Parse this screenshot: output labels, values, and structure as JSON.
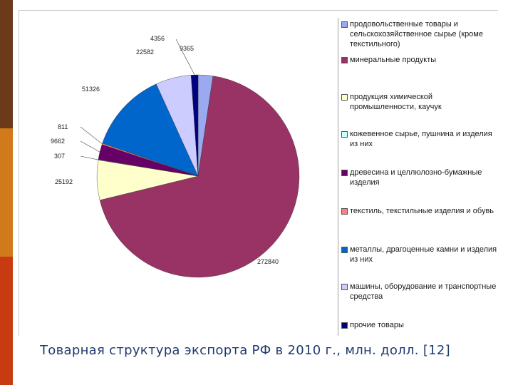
{
  "caption": "Товарная структура экспорта РФ в 2010 г., млн. долл. [12]",
  "colors": {
    "slide_bar": [
      "#6b3a1a",
      "#d07a1c",
      "#c83a10"
    ]
  },
  "chart_data": {
    "type": "pie",
    "title": "",
    "legend_position": "right",
    "slices": [
      {
        "name": "продовольственные товары и сельскохозяйственное сырье (кроме текстильного)",
        "value": 9365,
        "label": "9365",
        "color": "#9aa9f0"
      },
      {
        "name": "минеральные продукты",
        "value": 272840,
        "label": "272840",
        "color": "#993366"
      },
      {
        "name": "продукция химической промышленности, каучук",
        "value": 25192,
        "label": "25192",
        "color": "#ffffcc"
      },
      {
        "name": "кожевенное сырье, пушнина и изделия из них",
        "value": 307,
        "label": "307",
        "color": "#ccffff"
      },
      {
        "name": "древесина и целлюлозно-бумажные изделия",
        "value": 9662,
        "label": "9662",
        "color": "#660066"
      },
      {
        "name": "текстиль, текстильные изделия и обувь",
        "value": 811,
        "label": "811",
        "color": "#ff8080"
      },
      {
        "name": "металлы, драгоценные камни и изделия из них",
        "value": 51326,
        "label": "51326",
        "color": "#0066cc"
      },
      {
        "name": "машины, оборудование и транспортные средства",
        "value": 22582,
        "label": "22582",
        "color": "#ccccff"
      },
      {
        "name": "прочие товары",
        "value": 4356,
        "label": "4356",
        "color": "#000080"
      }
    ]
  }
}
